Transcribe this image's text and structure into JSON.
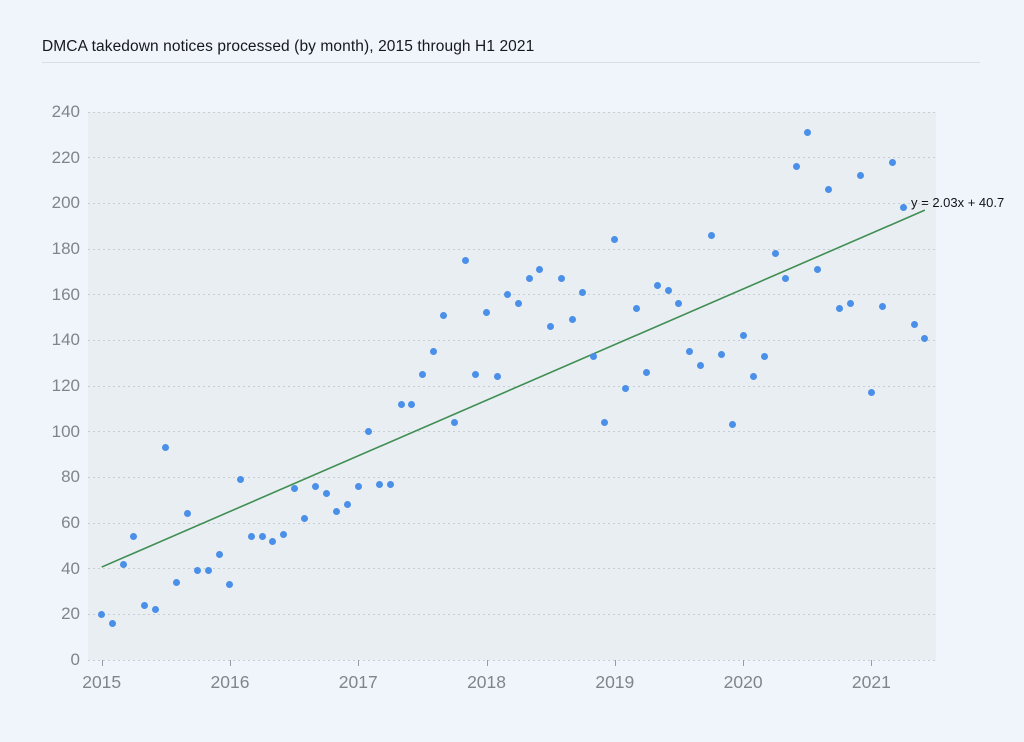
{
  "chart_data": {
    "type": "scatter",
    "title": "DMCA takedown notices processed (by month), 2015 through H1 2021",
    "x_start": "2015-01",
    "x_end": "2021-06",
    "x_tick_labels": [
      "2015",
      "2016",
      "2017",
      "2018",
      "2019",
      "2020",
      "2021"
    ],
    "y_tick_labels": [
      0,
      20,
      40,
      60,
      80,
      100,
      120,
      140,
      160,
      180,
      200,
      220,
      240
    ],
    "ylim": [
      0,
      240
    ],
    "grid": "horizontal-dashed",
    "legend": "none",
    "point_color": "#4a8fe8",
    "series": [
      {
        "name": "DMCA takedown notices per month",
        "values_by_year": {
          "2015": [
            20,
            16,
            42,
            54,
            24,
            22,
            93,
            34,
            64,
            39,
            39,
            46
          ],
          "2016": [
            33,
            79,
            54,
            54,
            52,
            55,
            75,
            62,
            76,
            73,
            65,
            68
          ],
          "2017": [
            76,
            100,
            77,
            77,
            112,
            112,
            125,
            135,
            151,
            104,
            175,
            125
          ],
          "2018": [
            152,
            124,
            160,
            156,
            167,
            171,
            146,
            167,
            149,
            161,
            133,
            104
          ],
          "2019": [
            184,
            119,
            154,
            126,
            164,
            162,
            156,
            135,
            129,
            186,
            134,
            103
          ],
          "2020": [
            142,
            124,
            133,
            178,
            167,
            216,
            231,
            171,
            206,
            154,
            156,
            212
          ],
          "2021": [
            117,
            155,
            218,
            198,
            147,
            141
          ]
        }
      }
    ],
    "trendline": {
      "label": "y = 2.03x + 40.7",
      "slope": 2.03,
      "intercept": 40.7,
      "x_domain_months": [
        0,
        77
      ],
      "color": "#3f8e52"
    }
  },
  "colors": {
    "page_background": "#eff5fb",
    "plot_background": "#e9eef3",
    "gridline": "#c7cdd4",
    "axis_label": "#7f858c",
    "title_text": "#15181c",
    "annotation_text": "#111417"
  }
}
